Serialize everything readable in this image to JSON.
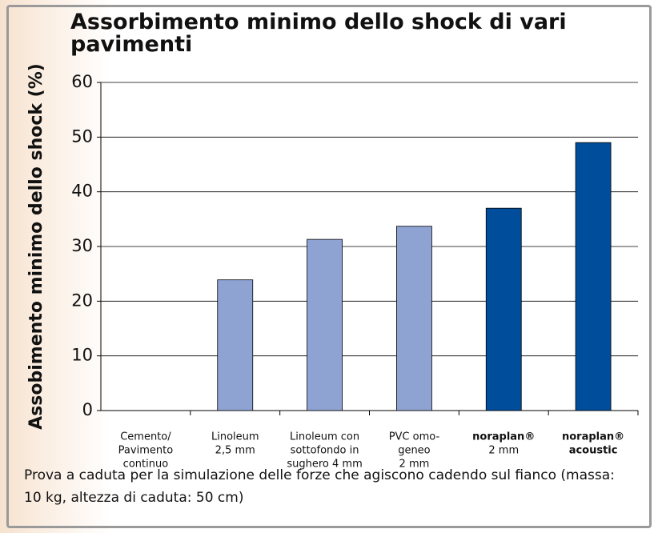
{
  "chart_data": {
    "type": "bar",
    "title": "Assorbimento minimo dello shock di vari pavimenti",
    "y_label": "Assobimento minimo dello shock (%)",
    "categories": [
      [
        "Cemento/",
        "Pavimento",
        "continuo"
      ],
      [
        "Linoleum",
        "2,5 mm"
      ],
      [
        "Linoleum con",
        "sottofondo in",
        "sughero 4 mm"
      ],
      [
        "PVC omo-",
        "geneo",
        "2 mm"
      ],
      [
        "noraplan®",
        "2 mm"
      ],
      [
        "noraplan®",
        "acoustic"
      ]
    ],
    "values": [
      0,
      23.9,
      31.3,
      33.7,
      37,
      49
    ],
    "colors": [
      "#8fa3d3",
      "#8fa3d3",
      "#8fa3d3",
      "#8fa3d3",
      "#004d9b",
      "#004d9b"
    ],
    "ylim": [
      0,
      60
    ],
    "yticks": [
      0,
      10,
      20,
      30,
      40,
      50,
      60
    ],
    "grid": true,
    "note": "Prova a caduta per la simulazione delle forze che agiscono cadendo sul fianco (massa: 10 kg, altezza di caduta: 50 cm)"
  }
}
